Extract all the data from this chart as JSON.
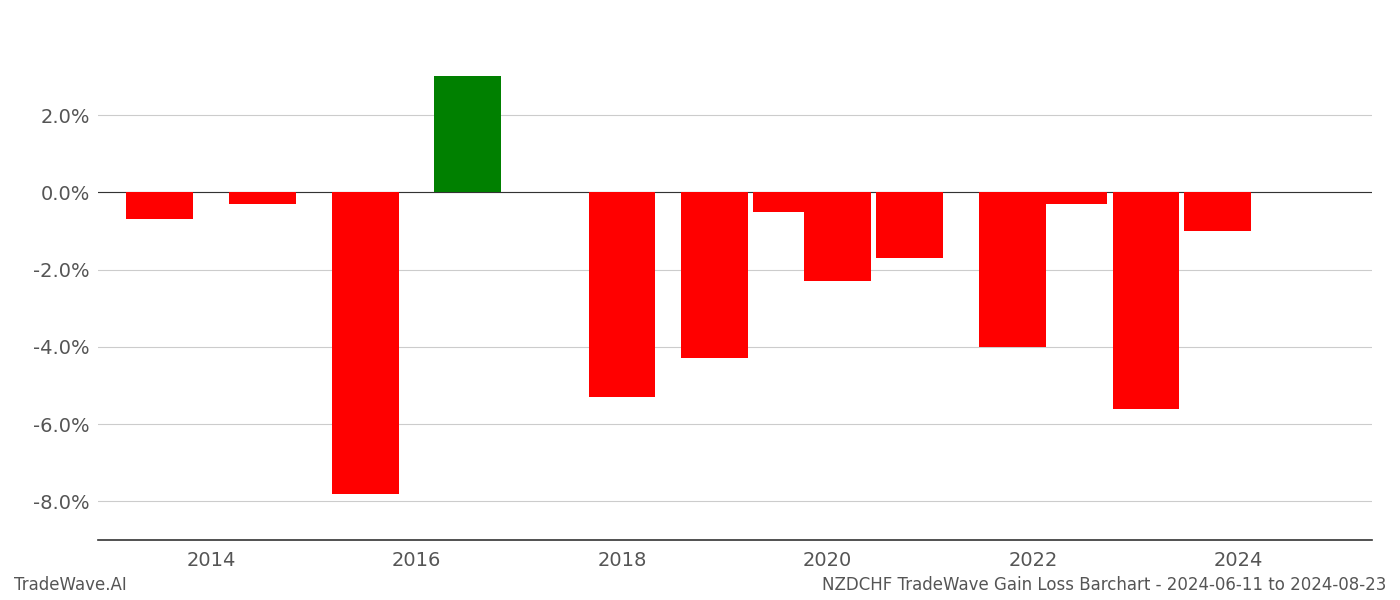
{
  "bars": [
    {
      "x": 2013.5,
      "value": -0.007,
      "color": "#ff0000"
    },
    {
      "x": 2014.5,
      "value": -0.003,
      "color": "#ff0000"
    },
    {
      "x": 2015.5,
      "value": -0.078,
      "color": "#ff0000"
    },
    {
      "x": 2016.5,
      "value": 0.03,
      "color": "#008000"
    },
    {
      "x": 2018.0,
      "value": -0.053,
      "color": "#ff0000"
    },
    {
      "x": 2018.9,
      "value": -0.043,
      "color": "#ff0000"
    },
    {
      "x": 2019.6,
      "value": -0.005,
      "color": "#ff0000"
    },
    {
      "x": 2020.1,
      "value": -0.023,
      "color": "#ff0000"
    },
    {
      "x": 2020.8,
      "value": -0.017,
      "color": "#ff0000"
    },
    {
      "x": 2021.8,
      "value": -0.04,
      "color": "#ff0000"
    },
    {
      "x": 2022.4,
      "value": -0.003,
      "color": "#ff0000"
    },
    {
      "x": 2023.1,
      "value": -0.056,
      "color": "#ff0000"
    },
    {
      "x": 2023.8,
      "value": -0.01,
      "color": "#ff0000"
    }
  ],
  "bar_width": 0.65,
  "xlim": [
    2012.9,
    2025.3
  ],
  "ylim": [
    -0.09,
    0.042
  ],
  "xticks": [
    2014,
    2016,
    2018,
    2020,
    2022,
    2024
  ],
  "xlabels": [
    "2014",
    "2016",
    "2018",
    "2020",
    "2022",
    "2024"
  ],
  "yticks": [
    -0.08,
    -0.06,
    -0.04,
    -0.02,
    0.0,
    0.02
  ],
  "footer_left": "TradeWave.AI",
  "footer_right": "NZDCHF TradeWave Gain Loss Barchart - 2024-06-11 to 2024-08-23",
  "background_color": "#ffffff",
  "grid_color": "#cccccc",
  "text_color": "#555555",
  "spine_color": "#333333"
}
